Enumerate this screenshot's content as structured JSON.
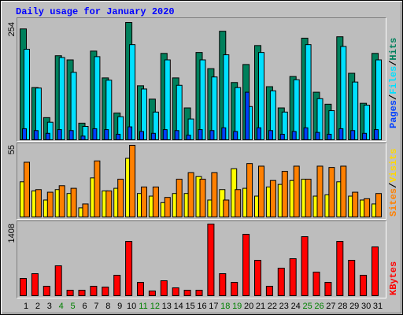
{
  "chart_data": [
    {
      "type": "bar",
      "title": "Daily usage for January 2020",
      "ylim": [
        0,
        254
      ],
      "yticks": [
        254
      ],
      "legend_separator": "/",
      "series": [
        {
          "name": "Hits",
          "color": "#00805c",
          "values": [
            240,
            113,
            48,
            182,
            173,
            36,
            192,
            134,
            58,
            254,
            117,
            88,
            187,
            134,
            69,
            189,
            154,
            235,
            124,
            163,
            204,
            115,
            69,
            137,
            220,
            103,
            77,
            223,
            144,
            79,
            187
          ]
        },
        {
          "name": "Files",
          "color": "#00e0ff",
          "values": [
            196,
            112,
            38,
            178,
            146,
            29,
            180,
            129,
            50,
            206,
            110,
            60,
            173,
            118,
            45,
            173,
            136,
            184,
            113,
            72,
            189,
            106,
            60,
            130,
            206,
            89,
            63,
            202,
            125,
            75,
            173
          ]
        },
        {
          "name": "Pages",
          "color": "#0040ff",
          "values": [
            24,
            20,
            14,
            22,
            20,
            8,
            24,
            22,
            12,
            28,
            18,
            14,
            22,
            20,
            10,
            22,
            20,
            26,
            18,
            103,
            26,
            20,
            12,
            18,
            26,
            16,
            12,
            24,
            20,
            14,
            22
          ]
        }
      ]
    },
    {
      "type": "bar",
      "ylim": [
        0,
        55
      ],
      "yticks": [
        55
      ],
      "legend_separator": "/",
      "series": [
        {
          "name": "Visits",
          "color": "#ffff00",
          "values": [
            27,
            20,
            13,
            21,
            18,
            7,
            30,
            20,
            22,
            45,
            18,
            16,
            11,
            18,
            18,
            31,
            13,
            21,
            37,
            22,
            16,
            23,
            25,
            28,
            29,
            16,
            17,
            27,
            16,
            13,
            10
          ]
        },
        {
          "name": "Sites",
          "color": "#ff8000",
          "values": [
            42,
            21,
            19,
            24,
            22,
            10,
            43,
            20,
            29,
            55,
            23,
            23,
            15,
            29,
            34,
            29,
            34,
            13,
            21,
            41,
            39,
            28,
            35,
            39,
            29,
            39,
            38,
            39,
            19,
            14,
            18
          ]
        }
      ]
    },
    {
      "type": "bar",
      "ylim": [
        0,
        1408
      ],
      "yticks": [
        1408
      ],
      "categories": [
        "1",
        "2",
        "3",
        "4",
        "5",
        "6",
        "7",
        "8",
        "9",
        "10",
        "11",
        "12",
        "13",
        "14",
        "15",
        "16",
        "17",
        "18",
        "19",
        "20",
        "21",
        "22",
        "23",
        "24",
        "25",
        "26",
        "27",
        "28",
        "29",
        "30",
        "31"
      ],
      "category_colors": [
        "#000000",
        "#000000",
        "#000000",
        "#008000",
        "#008000",
        "#000000",
        "#000000",
        "#000000",
        "#000000",
        "#000000",
        "#008000",
        "#008000",
        "#000000",
        "#000000",
        "#000000",
        "#000000",
        "#000000",
        "#008000",
        "#008000",
        "#000000",
        "#000000",
        "#000000",
        "#000000",
        "#000000",
        "#008000",
        "#008000",
        "#000000",
        "#000000",
        "#000000",
        "#000000",
        "#000000"
      ],
      "series": [
        {
          "name": "KBytes",
          "color": "#ff0000",
          "values": [
            340,
            433,
            186,
            588,
            108,
            108,
            186,
            170,
            402,
            1067,
            263,
            93,
            294,
            155,
            108,
            108,
            1408,
            433,
            263,
            1207,
            696,
            186,
            541,
            727,
            1160,
            464,
            263,
            1067,
            696,
            402,
            959
          ]
        }
      ]
    }
  ]
}
